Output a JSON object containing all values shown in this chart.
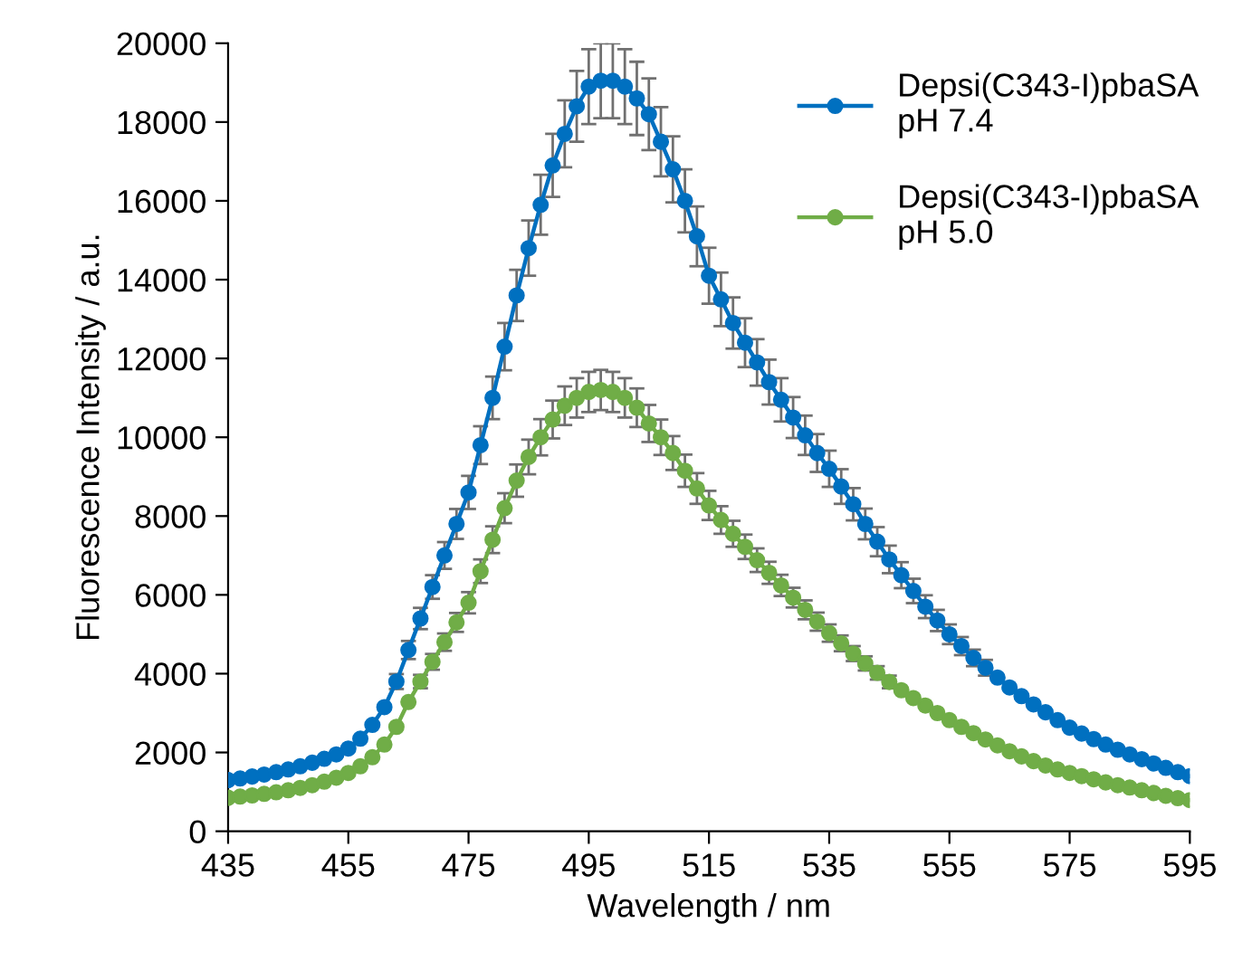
{
  "chart_data": {
    "type": "line",
    "xlabel": "Wavelength / nm",
    "ylabel": "Fluorescence Intensity / a.u.",
    "x": [
      435,
      437,
      439,
      441,
      443,
      445,
      447,
      449,
      451,
      453,
      455,
      457,
      459,
      461,
      463,
      465,
      467,
      469,
      471,
      473,
      475,
      477,
      479,
      481,
      483,
      485,
      487,
      489,
      491,
      493,
      495,
      497,
      499,
      501,
      503,
      505,
      507,
      509,
      511,
      513,
      515,
      517,
      519,
      521,
      523,
      525,
      527,
      529,
      531,
      533,
      535,
      537,
      539,
      541,
      543,
      545,
      547,
      549,
      551,
      553,
      555,
      557,
      559,
      561,
      563,
      565,
      567,
      569,
      571,
      573,
      575,
      577,
      579,
      581,
      583,
      585,
      587,
      589,
      591,
      593,
      595
    ],
    "series": [
      {
        "name": "Depsi(C343-I)pbaSA\npH 7.4",
        "color": "#0070c0",
        "values": [
          1300,
          1340,
          1390,
          1440,
          1500,
          1570,
          1650,
          1740,
          1840,
          1950,
          2100,
          2350,
          2700,
          3150,
          3800,
          4600,
          5400,
          6200,
          7000,
          7800,
          8600,
          9800,
          11000,
          12300,
          13600,
          14800,
          15900,
          16900,
          17700,
          18400,
          18900,
          19050,
          19050,
          18900,
          18600,
          18200,
          17500,
          16800,
          16000,
          15100,
          14100,
          13500,
          12900,
          12400,
          11900,
          11400,
          10950,
          10500,
          10050,
          9600,
          9200,
          8750,
          8300,
          7800,
          7350,
          6900,
          6500,
          6100,
          5700,
          5350,
          5000,
          4700,
          4400,
          4150,
          3900,
          3650,
          3430,
          3220,
          3020,
          2820,
          2630,
          2480,
          2340,
          2200,
          2070,
          1950,
          1830,
          1720,
          1610,
          1500,
          1400
        ],
        "errors": [
          null,
          null,
          null,
          null,
          null,
          null,
          null,
          null,
          null,
          null,
          null,
          null,
          null,
          null,
          190,
          230,
          270,
          300,
          340,
          380,
          420,
          480,
          540,
          600,
          650,
          700,
          760,
          800,
          850,
          900,
          950,
          950,
          950,
          950,
          930,
          910,
          880,
          840,
          800,
          760,
          710,
          680,
          650,
          620,
          590,
          570,
          550,
          520,
          500,
          480,
          460,
          440,
          410,
          390,
          370,
          350,
          330,
          310,
          290,
          270,
          250,
          230,
          210,
          200,
          null,
          null,
          null,
          null,
          null,
          null,
          null,
          null,
          null,
          null,
          null,
          null,
          null,
          null,
          null,
          null,
          null
        ]
      },
      {
        "name": "Depsi(C343-I)pbaSA\npH 5.0",
        "color": "#70ad47",
        "values": [
          850,
          880,
          910,
          950,
          990,
          1040,
          1100,
          1170,
          1260,
          1360,
          1480,
          1650,
          1880,
          2200,
          2650,
          3280,
          3800,
          4300,
          4800,
          5300,
          5800,
          6600,
          7400,
          8200,
          8900,
          9500,
          10000,
          10450,
          10800,
          11000,
          11150,
          11200,
          11150,
          11000,
          10750,
          10350,
          10000,
          9600,
          9150,
          8700,
          8270,
          7900,
          7550,
          7220,
          6880,
          6560,
          6240,
          5930,
          5620,
          5320,
          5030,
          4770,
          4510,
          4260,
          4020,
          3790,
          3580,
          3380,
          3190,
          3000,
          2820,
          2650,
          2490,
          2330,
          2180,
          2030,
          1900,
          1780,
          1670,
          1570,
          1480,
          1400,
          1320,
          1240,
          1170,
          1110,
          1040,
          970,
          900,
          840,
          790
        ],
        "errors": [
          null,
          null,
          null,
          null,
          null,
          null,
          null,
          null,
          null,
          null,
          null,
          null,
          null,
          null,
          null,
          null,
          170,
          200,
          220,
          240,
          270,
          300,
          340,
          380,
          410,
          440,
          460,
          480,
          490,
          500,
          510,
          510,
          510,
          500,
          490,
          470,
          450,
          430,
          410,
          390,
          370,
          350,
          330,
          310,
          300,
          280,
          270,
          250,
          240,
          230,
          220,
          200,
          190,
          180,
          170,
          160,
          null,
          null,
          null,
          null,
          null,
          null,
          null,
          null,
          null,
          null,
          null,
          null,
          null,
          null,
          null,
          null,
          null,
          null,
          null,
          null,
          null,
          null,
          null,
          null,
          null
        ]
      }
    ],
    "xlim": [
      435,
      595
    ],
    "xticks": [
      435,
      455,
      475,
      495,
      515,
      535,
      555,
      575,
      595
    ],
    "ylim": [
      0,
      20000
    ],
    "yticks": [
      0,
      2000,
      4000,
      6000,
      8000,
      10000,
      12000,
      14000,
      16000,
      18000,
      20000
    ],
    "grid": false,
    "legend": "top right",
    "marker": "circle",
    "line_style": "solid"
  }
}
